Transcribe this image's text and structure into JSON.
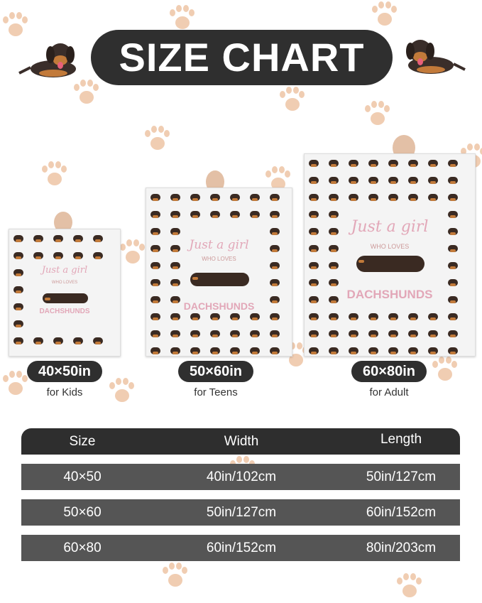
{
  "title": "SIZE CHART",
  "blanket_print": {
    "line1": "Just a girl",
    "line2": "WHO LOVES",
    "line3": "DACHSHUNDS"
  },
  "sizes": [
    {
      "label": "40×50in",
      "audience": "for Kids"
    },
    {
      "label": "50×60in",
      "audience": "for Teens"
    },
    {
      "label": "60×80in",
      "audience": "for Adult"
    }
  ],
  "table": {
    "headers": [
      "Size",
      "Width",
      "Length"
    ],
    "rows": [
      [
        "40×50",
        "40in/102cm",
        "50in/127cm"
      ],
      [
        "50×60",
        "50in/127cm",
        "60in/152cm"
      ],
      [
        "60×80",
        "60in/152cm",
        "80in/203cm"
      ]
    ]
  },
  "colors": {
    "dark": "#2f2f2f",
    "row": "#555555",
    "paw": "#f0cdb2",
    "accent_pink": "#e2a7b8"
  }
}
